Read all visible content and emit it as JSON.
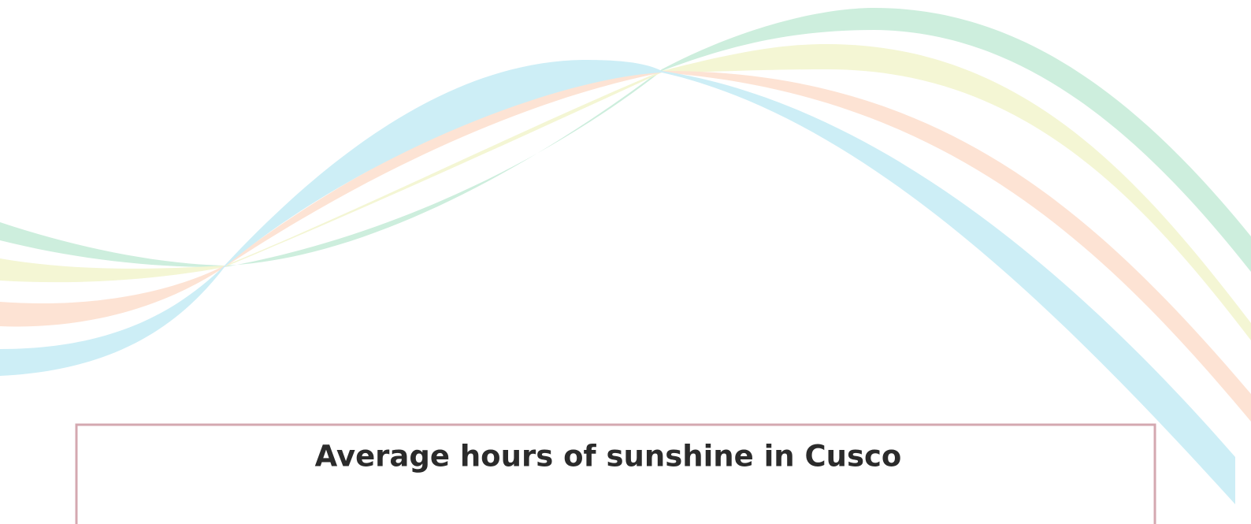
{
  "header": {
    "title": "Average hours of sunshine in Cusco"
  }
}
